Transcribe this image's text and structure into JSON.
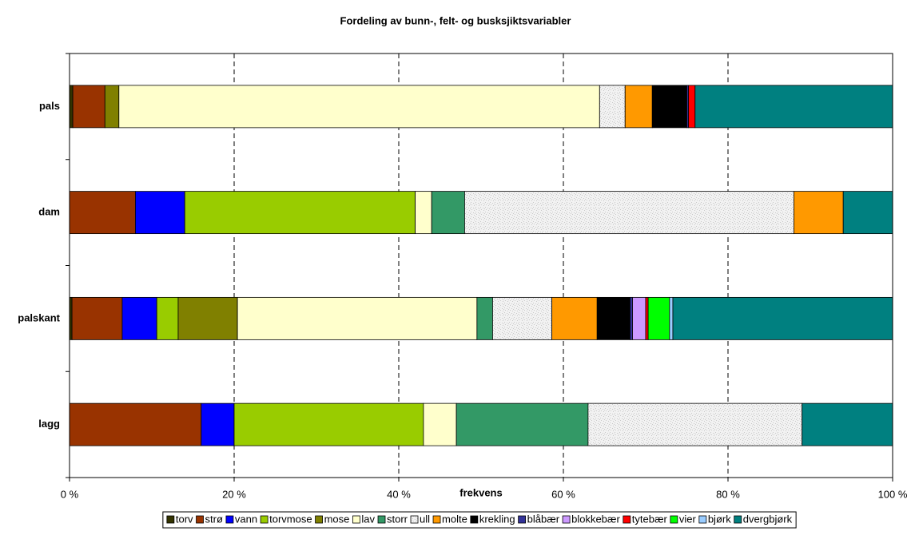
{
  "chart_data": {
    "type": "stacked-bar-horizontal",
    "title": "Fordeling av bunn-, felt- og busksjiktsvariabler",
    "x_label": "frekvens",
    "categories": [
      "pals",
      "dam",
      "palskant",
      "lagg"
    ],
    "xlim": [
      0,
      100
    ],
    "xticks": [
      {
        "value": 0,
        "label": "0 %"
      },
      {
        "value": 20,
        "label": "20 %"
      },
      {
        "value": 40,
        "label": "40 %"
      },
      {
        "value": 60,
        "label": "60 %"
      },
      {
        "value": 80,
        "label": "80 %"
      },
      {
        "value": 100,
        "label": "100 %"
      }
    ],
    "grid": true,
    "legend": "bottom",
    "series": [
      {
        "name": "torv",
        "color": "#333300",
        "values": [
          0.4,
          0,
          0.3,
          0
        ]
      },
      {
        "name": "strø",
        "color": "#993300",
        "values": [
          3.9,
          8,
          6.1,
          16
        ]
      },
      {
        "name": "vann",
        "color": "#0000ff",
        "values": [
          0,
          6,
          4.2,
          4
        ]
      },
      {
        "name": "torvmose",
        "color": "#99cc00",
        "values": [
          0,
          28,
          2.6,
          23
        ]
      },
      {
        "name": "mose",
        "color": "#808000",
        "values": [
          1.7,
          0,
          7.2,
          0
        ]
      },
      {
        "name": "lav",
        "color": "#ffffcc",
        "values": [
          58.4,
          2,
          29.1,
          4
        ]
      },
      {
        "name": "storr",
        "color": "#339966",
        "values": [
          0,
          4,
          1.9,
          16
        ]
      },
      {
        "name": "ull",
        "color": "#eeeeee",
        "values": [
          3.1,
          40,
          7.2,
          26
        ]
      },
      {
        "name": "molte",
        "color": "#ff9900",
        "values": [
          3.3,
          6,
          5.5,
          0
        ]
      },
      {
        "name": "krekling",
        "color": "#000000",
        "values": [
          4.2,
          0,
          4.0,
          0
        ]
      },
      {
        "name": "blåbær",
        "color": "#333399",
        "values": [
          0.2,
          0,
          0.3,
          0
        ]
      },
      {
        "name": "blokkebær",
        "color": "#cc99ff",
        "values": [
          0,
          0,
          1.6,
          0
        ]
      },
      {
        "name": "tytebær",
        "color": "#ff0000",
        "values": [
          0.8,
          0,
          0.3,
          0
        ]
      },
      {
        "name": "vier",
        "color": "#00ff00",
        "values": [
          0,
          0,
          2.6,
          0
        ]
      },
      {
        "name": "bjørk",
        "color": "#99ccff",
        "values": [
          0,
          0,
          0.4,
          0
        ]
      },
      {
        "name": "dvergbjørk",
        "color": "#008080",
        "values": [
          24.0,
          6,
          26.7,
          11
        ]
      }
    ]
  }
}
